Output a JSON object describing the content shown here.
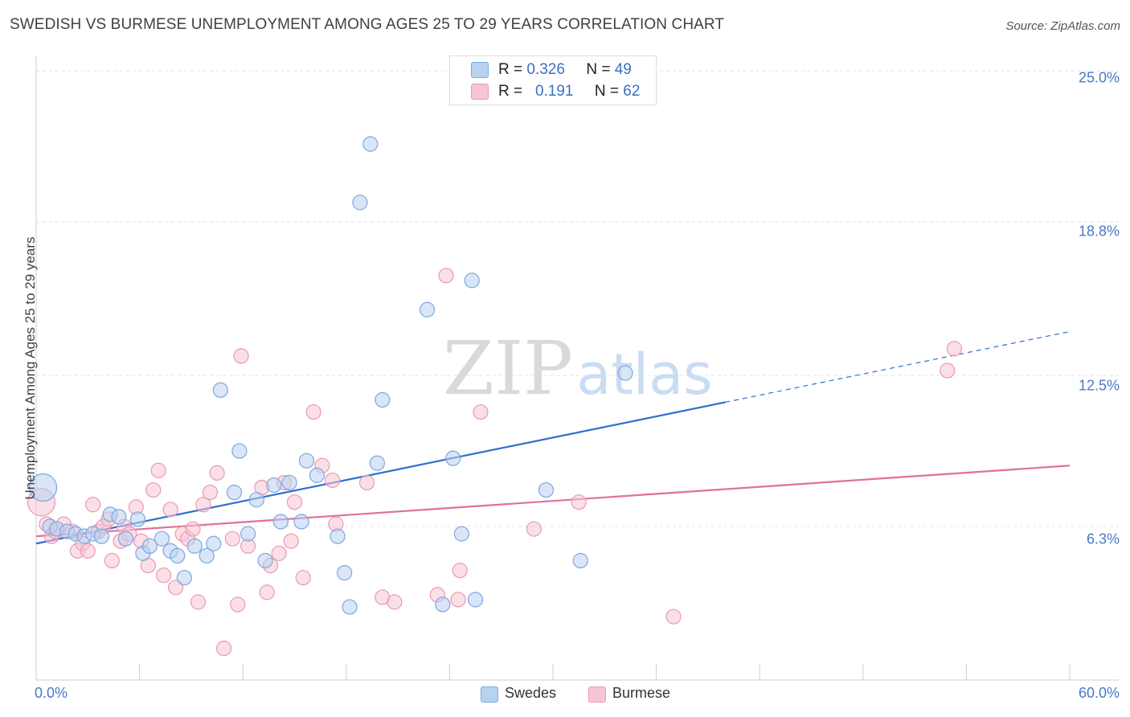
{
  "header": {
    "title": "SWEDISH VS BURMESE UNEMPLOYMENT AMONG AGES 25 TO 29 YEARS CORRELATION CHART",
    "source": "Source: ZipAtlas.com"
  },
  "watermark": {
    "zip": "ZIP",
    "atlas": "atlas"
  },
  "stats": {
    "swedes": {
      "r_label": "R = ",
      "r": "0.326",
      "n_label": "N = ",
      "n": "49"
    },
    "burmese": {
      "r_label": "R = ",
      "r": "0.191",
      "n_label": "N = ",
      "n": "62"
    }
  },
  "legend": {
    "swedes": "Swedes",
    "burmese": "Burmese"
  },
  "colors": {
    "swedes_fill": "#b8d2f2",
    "swedes_stroke": "#7ea6de",
    "swedes_line": "#2f6fcf",
    "burmese_fill": "#f8c4d4",
    "burmese_stroke": "#e89ab2",
    "burmese_line": "#e0709a",
    "grid": "#e3e3e3",
    "tick_text": "#4a78c4"
  },
  "chart_data": {
    "type": "scatter",
    "title": "SWEDISH VS BURMESE UNEMPLOYMENT AMONG AGES 25 TO 29 YEARS CORRELATION CHART",
    "xlabel": "",
    "ylabel": "Unemployment Among Ages 25 to 29 years",
    "xlim": [
      0,
      60
    ],
    "ylim": [
      0,
      25.6
    ],
    "x_tick_labels": [
      "0.0%",
      "60.0%"
    ],
    "y_ticks": [
      6.3,
      12.5,
      18.8,
      25.0
    ],
    "y_tick_labels": [
      "6.3%",
      "12.5%",
      "18.8%",
      "25.0%"
    ],
    "series": [
      {
        "name": "Swedes",
        "r": 0.326,
        "n": 49,
        "trend": {
          "x0": 0,
          "y0": 5.6,
          "x1": 40,
          "y1": 11.4,
          "dash_to_x": 60,
          "dash_to_y": 14.3
        },
        "points": [
          [
            0.4,
            7.9
          ],
          [
            0.8,
            6.3
          ],
          [
            1.2,
            6.2
          ],
          [
            1.8,
            6.1
          ],
          [
            2.3,
            6.0
          ],
          [
            2.8,
            5.9
          ],
          [
            3.3,
            6.0
          ],
          [
            3.8,
            5.9
          ],
          [
            4.3,
            6.8
          ],
          [
            4.8,
            6.7
          ],
          [
            5.2,
            5.8
          ],
          [
            5.9,
            6.6
          ],
          [
            6.2,
            5.2
          ],
          [
            6.6,
            5.5
          ],
          [
            7.3,
            5.8
          ],
          [
            7.8,
            5.3
          ],
          [
            8.2,
            5.1
          ],
          [
            8.6,
            4.2
          ],
          [
            9.2,
            5.5
          ],
          [
            9.9,
            5.1
          ],
          [
            10.3,
            5.6
          ],
          [
            10.7,
            11.9
          ],
          [
            11.5,
            7.7
          ],
          [
            11.8,
            9.4
          ],
          [
            12.3,
            6.0
          ],
          [
            12.8,
            7.4
          ],
          [
            13.3,
            4.9
          ],
          [
            13.8,
            8.0
          ],
          [
            14.2,
            6.5
          ],
          [
            14.7,
            8.1
          ],
          [
            15.4,
            6.5
          ],
          [
            15.7,
            9.0
          ],
          [
            16.3,
            8.4
          ],
          [
            17.5,
            5.9
          ],
          [
            17.9,
            4.4
          ],
          [
            18.2,
            3.0
          ],
          [
            18.8,
            19.6
          ],
          [
            19.4,
            22.0
          ],
          [
            19.8,
            8.9
          ],
          [
            20.1,
            11.5
          ],
          [
            22.7,
            15.2
          ],
          [
            23.6,
            3.1
          ],
          [
            24.2,
            9.1
          ],
          [
            24.7,
            6.0
          ],
          [
            25.3,
            16.4
          ],
          [
            25.5,
            3.3
          ],
          [
            29.6,
            7.8
          ],
          [
            31.6,
            4.9
          ],
          [
            34.2,
            12.6
          ]
        ]
      },
      {
        "name": "Burmese",
        "r": 0.191,
        "n": 62,
        "trend": {
          "x0": 0,
          "y0": 5.9,
          "x1": 60,
          "y1": 8.8
        },
        "points": [
          [
            0.3,
            7.3
          ],
          [
            0.6,
            6.4
          ],
          [
            0.9,
            5.9
          ],
          [
            1.1,
            6.1
          ],
          [
            1.6,
            6.4
          ],
          [
            2.1,
            6.1
          ],
          [
            2.4,
            5.3
          ],
          [
            2.7,
            5.6
          ],
          [
            3.0,
            5.3
          ],
          [
            3.3,
            7.2
          ],
          [
            3.6,
            6.1
          ],
          [
            3.9,
            6.3
          ],
          [
            4.2,
            6.6
          ],
          [
            4.4,
            4.9
          ],
          [
            4.9,
            5.7
          ],
          [
            5.1,
            6.3
          ],
          [
            5.4,
            6.0
          ],
          [
            5.8,
            7.1
          ],
          [
            6.1,
            5.7
          ],
          [
            6.5,
            4.7
          ],
          [
            6.8,
            7.8
          ],
          [
            7.1,
            8.6
          ],
          [
            7.4,
            4.3
          ],
          [
            7.8,
            7.0
          ],
          [
            8.1,
            3.8
          ],
          [
            8.5,
            6.0
          ],
          [
            8.8,
            5.8
          ],
          [
            9.1,
            6.2
          ],
          [
            9.4,
            3.2
          ],
          [
            9.7,
            7.2
          ],
          [
            10.1,
            7.7
          ],
          [
            10.5,
            8.5
          ],
          [
            10.9,
            1.3
          ],
          [
            11.4,
            5.8
          ],
          [
            11.7,
            3.1
          ],
          [
            11.9,
            13.3
          ],
          [
            12.3,
            5.5
          ],
          [
            13.1,
            7.9
          ],
          [
            13.4,
            3.6
          ],
          [
            13.6,
            4.7
          ],
          [
            14.1,
            5.2
          ],
          [
            14.4,
            8.1
          ],
          [
            14.8,
            5.7
          ],
          [
            15.0,
            7.3
          ],
          [
            15.5,
            4.2
          ],
          [
            16.1,
            11.0
          ],
          [
            16.6,
            8.8
          ],
          [
            17.2,
            8.2
          ],
          [
            17.4,
            6.4
          ],
          [
            19.2,
            8.1
          ],
          [
            20.1,
            3.4
          ],
          [
            20.8,
            3.2
          ],
          [
            23.3,
            3.5
          ],
          [
            23.8,
            16.6
          ],
          [
            24.5,
            3.3
          ],
          [
            24.6,
            4.5
          ],
          [
            25.8,
            11.0
          ],
          [
            28.9,
            6.2
          ],
          [
            31.5,
            7.3
          ],
          [
            37.0,
            2.6
          ],
          [
            52.9,
            12.7
          ],
          [
            53.3,
            13.6
          ]
        ]
      }
    ]
  }
}
